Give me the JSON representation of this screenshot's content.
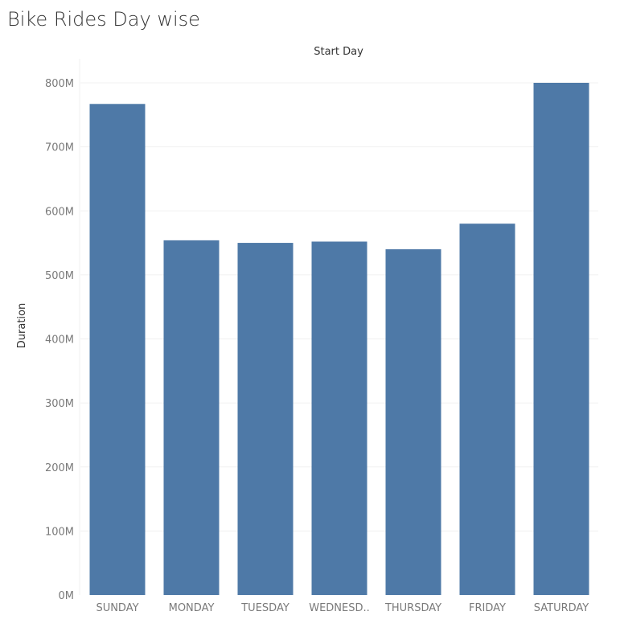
{
  "title": "Bike Rides Day wise",
  "colors": {
    "bar": "#4e79a7",
    "grid": "#f0f0f0",
    "tick_text": "#7a7a7a",
    "title_text": "#333333"
  },
  "chart_data": {
    "type": "bar",
    "title": "Bike Rides Day wise",
    "xlabel": "Start Day",
    "ylabel": "Duration",
    "categories": [
      "SUNDAY",
      "MONDAY",
      "TUESDAY",
      "WEDNESD..",
      "THURSDAY",
      "FRIDAY",
      "SATURDAY"
    ],
    "values": [
      767,
      554,
      550,
      552,
      540,
      580,
      800
    ],
    "unit": "M",
    "ylim": [
      0,
      800
    ],
    "yticks": [
      0,
      100,
      200,
      300,
      400,
      500,
      600,
      700,
      800
    ],
    "ytick_labels": [
      "0M",
      "100M",
      "200M",
      "300M",
      "400M",
      "500M",
      "600M",
      "700M",
      "800M"
    ],
    "grid": true,
    "legend": "none"
  }
}
